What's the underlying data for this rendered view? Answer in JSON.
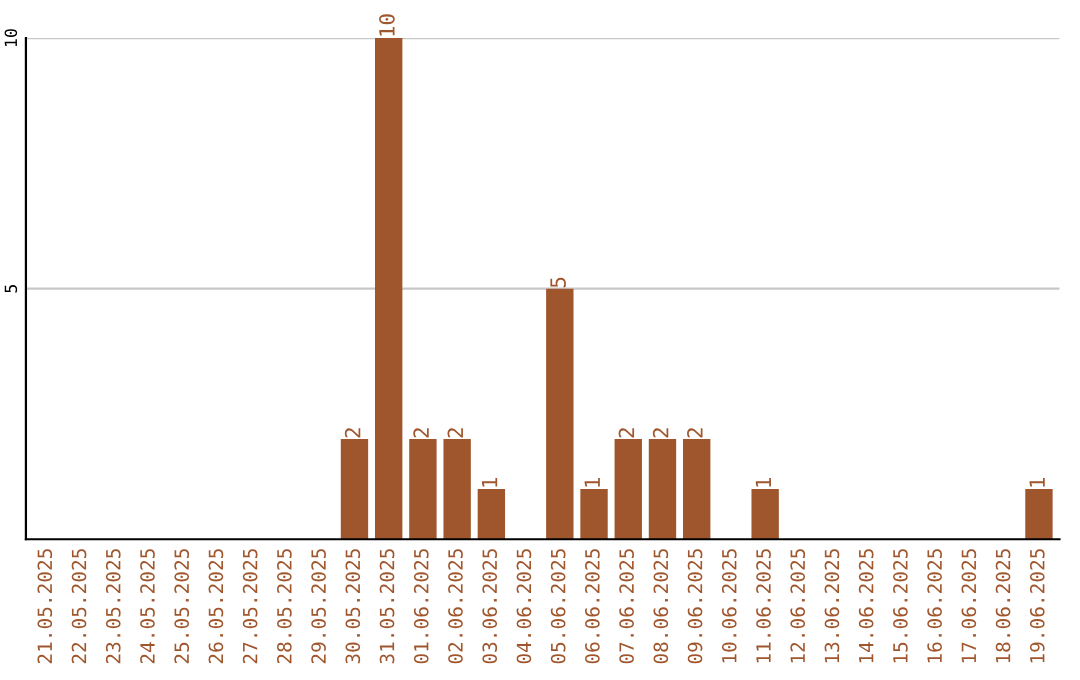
{
  "chart_data": {
    "type": "bar",
    "categories": [
      "21.05.2025",
      "22.05.2025",
      "23.05.2025",
      "24.05.2025",
      "25.05.2025",
      "26.05.2025",
      "27.05.2025",
      "28.05.2025",
      "29.05.2025",
      "30.05.2025",
      "31.05.2025",
      "01.06.2025",
      "02.06.2025",
      "03.06.2025",
      "04.06.2025",
      "05.06.2025",
      "06.06.2025",
      "07.06.2025",
      "08.06.2025",
      "09.06.2025",
      "10.06.2025",
      "11.06.2025",
      "12.06.2025",
      "13.06.2025",
      "14.06.2025",
      "15.06.2025",
      "16.06.2025",
      "17.06.2025",
      "18.06.2025",
      "19.06.2025"
    ],
    "values": [
      0,
      0,
      0,
      0,
      0,
      0,
      0,
      0,
      0,
      2,
      10,
      2,
      2,
      1,
      0,
      5,
      1,
      2,
      2,
      2,
      0,
      1,
      0,
      0,
      0,
      0,
      0,
      0,
      0,
      1
    ],
    "value_labels": [
      null,
      null,
      null,
      null,
      null,
      null,
      null,
      null,
      null,
      "2",
      "10",
      "2",
      "2",
      "1",
      null,
      "5",
      "1",
      "2",
      "2",
      "2",
      null,
      "1",
      null,
      null,
      null,
      null,
      null,
      null,
      null,
      "1"
    ],
    "color": "#a0562c",
    "ylim": [
      0,
      10
    ],
    "yticks": [
      5,
      10
    ],
    "grid": "y"
  }
}
